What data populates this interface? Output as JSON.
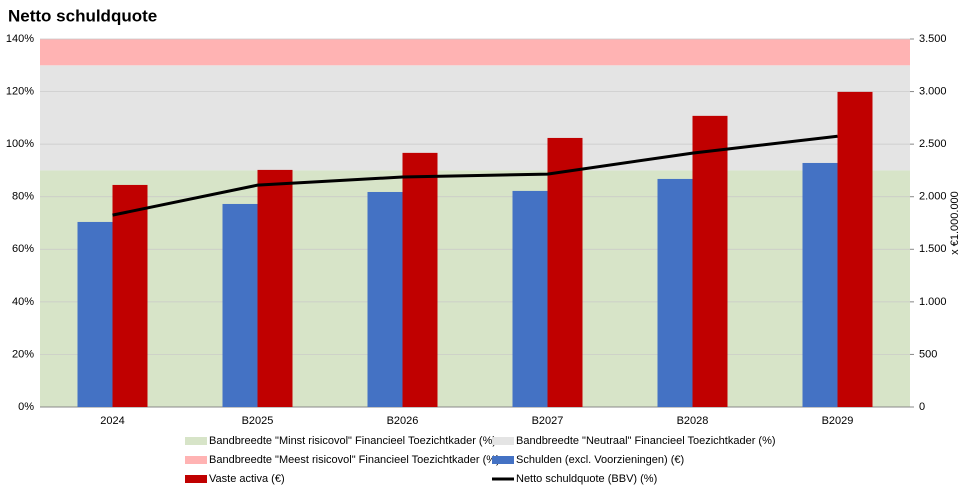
{
  "chart_data": {
    "type": "bar",
    "title": "Netto schuldquote",
    "y2_label": "x €1.000.000",
    "categories": [
      "2024",
      "B2025",
      "B2026",
      "B2027",
      "B2028",
      "B2029"
    ],
    "bands": [
      {
        "name": "Bandbreedte \"Minst risicovol\" Financieel Toezichtkader (%)",
        "color": "#d7e4c8",
        "range": [
          0,
          90
        ]
      },
      {
        "name": "Bandbreedte \"Neutraal\" Financieel Toezichtkader (%)",
        "color": "#e4e4e4",
        "range": [
          90,
          130
        ]
      },
      {
        "name": "Bandbreedte \"Meest risicovol\" Financieel Toezichtkader (%)",
        "color": "#ffb3b3",
        "range": [
          130,
          140
        ]
      }
    ],
    "series": [
      {
        "name": "Schulden (excl. Voorzieningen) (€)",
        "color": "#4472c4",
        "type": "bar",
        "axis": "y2",
        "values": [
          1760,
          1931,
          2045,
          2055,
          2169,
          2321
        ]
      },
      {
        "name": "Vaste activa (€)",
        "color": "#c00000",
        "type": "bar",
        "axis": "y2",
        "values": [
          2112,
          2255,
          2417,
          2559,
          2769,
          2997
        ]
      },
      {
        "name": "Netto schuldquote (BBV) (%)",
        "color": "#000000",
        "type": "line",
        "values": [
          73.0,
          84.4,
          87.5,
          88.6,
          96.6,
          103.0
        ]
      }
    ],
    "ylim": [
      0,
      140
    ],
    "yticks": [
      {
        "value": 0,
        "label": "0%"
      },
      {
        "value": 20,
        "label": "20%"
      },
      {
        "value": 40,
        "label": "40%"
      },
      {
        "value": 60,
        "label": "60%"
      },
      {
        "value": 80,
        "label": "80%"
      },
      {
        "value": 100,
        "label": "100%"
      },
      {
        "value": 120,
        "label": "120%"
      },
      {
        "value": 140,
        "label": "140%"
      }
    ],
    "y2lim": [
      0,
      3500
    ],
    "y2ticks": [
      0,
      500,
      {
        "value": 1000,
        "label": "1.000"
      },
      {
        "value": 1500,
        "label": "1.500"
      },
      {
        "value": 2000,
        "label": "2.000"
      },
      {
        "value": 2500,
        "label": "2.500"
      },
      {
        "value": 3000,
        "label": "3.000"
      },
      {
        "value": 3500,
        "label": "3.500"
      }
    ],
    "grid": true
  }
}
